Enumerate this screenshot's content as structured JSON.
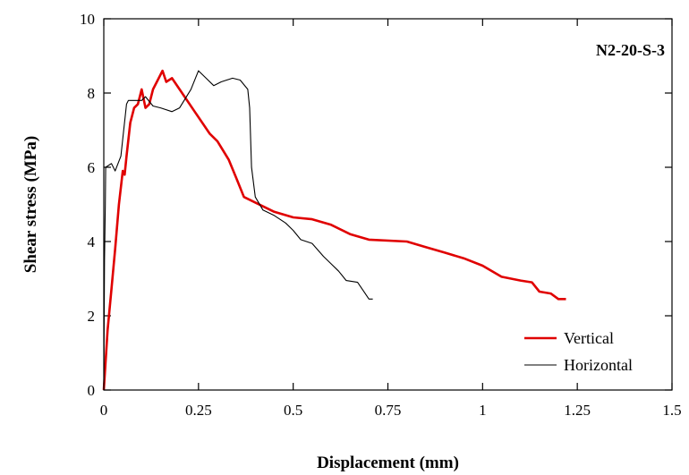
{
  "chart_data": {
    "type": "line",
    "title": "",
    "annotation": "N2-20-S-3",
    "xlabel": "Displacement (mm)",
    "ylabel": "Shear stress (MPa)",
    "xlim": [
      0,
      1.5
    ],
    "ylim": [
      0,
      10
    ],
    "xticks": [
      0,
      0.25,
      0.5,
      0.75,
      1,
      1.25,
      1.5
    ],
    "xtick_labels": [
      "0",
      "0.25",
      "0.5",
      "0.75",
      "1",
      "1.25",
      "1.5"
    ],
    "yticks": [
      0,
      2,
      4,
      6,
      8,
      10
    ],
    "ytick_labels": [
      "0",
      "2",
      "4",
      "6",
      "8",
      "10"
    ],
    "grid": false,
    "legend_position": "bottom-right",
    "series": [
      {
        "name": "Vertical",
        "color": "#e00000",
        "points": [
          [
            0,
            0
          ],
          [
            0.01,
            1.6
          ],
          [
            0.02,
            2.7
          ],
          [
            0.03,
            3.8
          ],
          [
            0.04,
            5.0
          ],
          [
            0.05,
            5.9
          ],
          [
            0.055,
            5.8
          ],
          [
            0.06,
            6.3
          ],
          [
            0.07,
            7.2
          ],
          [
            0.08,
            7.6
          ],
          [
            0.09,
            7.7
          ],
          [
            0.1,
            8.1
          ],
          [
            0.11,
            7.6
          ],
          [
            0.12,
            7.7
          ],
          [
            0.13,
            8.1
          ],
          [
            0.14,
            8.3
          ],
          [
            0.155,
            8.6
          ],
          [
            0.165,
            8.3
          ],
          [
            0.18,
            8.4
          ],
          [
            0.2,
            8.1
          ],
          [
            0.24,
            7.5
          ],
          [
            0.28,
            6.9
          ],
          [
            0.3,
            6.7
          ],
          [
            0.33,
            6.2
          ],
          [
            0.35,
            5.7
          ],
          [
            0.37,
            5.2
          ],
          [
            0.4,
            5.05
          ],
          [
            0.45,
            4.8
          ],
          [
            0.5,
            4.65
          ],
          [
            0.55,
            4.6
          ],
          [
            0.6,
            4.45
          ],
          [
            0.65,
            4.2
          ],
          [
            0.7,
            4.05
          ],
          [
            0.8,
            4.0
          ],
          [
            0.85,
            3.85
          ],
          [
            0.9,
            3.7
          ],
          [
            0.95,
            3.55
          ],
          [
            1.0,
            3.35
          ],
          [
            1.05,
            3.05
          ],
          [
            1.1,
            2.95
          ],
          [
            1.13,
            2.9
          ],
          [
            1.15,
            2.65
          ],
          [
            1.18,
            2.6
          ],
          [
            1.2,
            2.45
          ],
          [
            1.22,
            2.45
          ]
        ]
      },
      {
        "name": "Horizontal",
        "color": "#000000",
        "points": [
          [
            0,
            0
          ],
          [
            0.002,
            3.5
          ],
          [
            0.004,
            5.0
          ],
          [
            0.005,
            6.0
          ],
          [
            0.02,
            6.1
          ],
          [
            0.03,
            5.9
          ],
          [
            0.045,
            6.3
          ],
          [
            0.06,
            7.7
          ],
          [
            0.065,
            7.8
          ],
          [
            0.1,
            7.8
          ],
          [
            0.11,
            7.9
          ],
          [
            0.13,
            7.65
          ],
          [
            0.15,
            7.6
          ],
          [
            0.18,
            7.5
          ],
          [
            0.2,
            7.6
          ],
          [
            0.23,
            8.1
          ],
          [
            0.25,
            8.6
          ],
          [
            0.27,
            8.4
          ],
          [
            0.29,
            8.2
          ],
          [
            0.31,
            8.3
          ],
          [
            0.34,
            8.4
          ],
          [
            0.36,
            8.35
          ],
          [
            0.38,
            8.1
          ],
          [
            0.385,
            7.6
          ],
          [
            0.39,
            6.0
          ],
          [
            0.4,
            5.2
          ],
          [
            0.42,
            4.85
          ],
          [
            0.45,
            4.7
          ],
          [
            0.48,
            4.5
          ],
          [
            0.5,
            4.3
          ],
          [
            0.52,
            4.05
          ],
          [
            0.55,
            3.95
          ],
          [
            0.58,
            3.6
          ],
          [
            0.6,
            3.4
          ],
          [
            0.62,
            3.2
          ],
          [
            0.64,
            2.95
          ],
          [
            0.67,
            2.9
          ],
          [
            0.69,
            2.6
          ],
          [
            0.7,
            2.45
          ],
          [
            0.71,
            2.45
          ]
        ]
      }
    ]
  }
}
